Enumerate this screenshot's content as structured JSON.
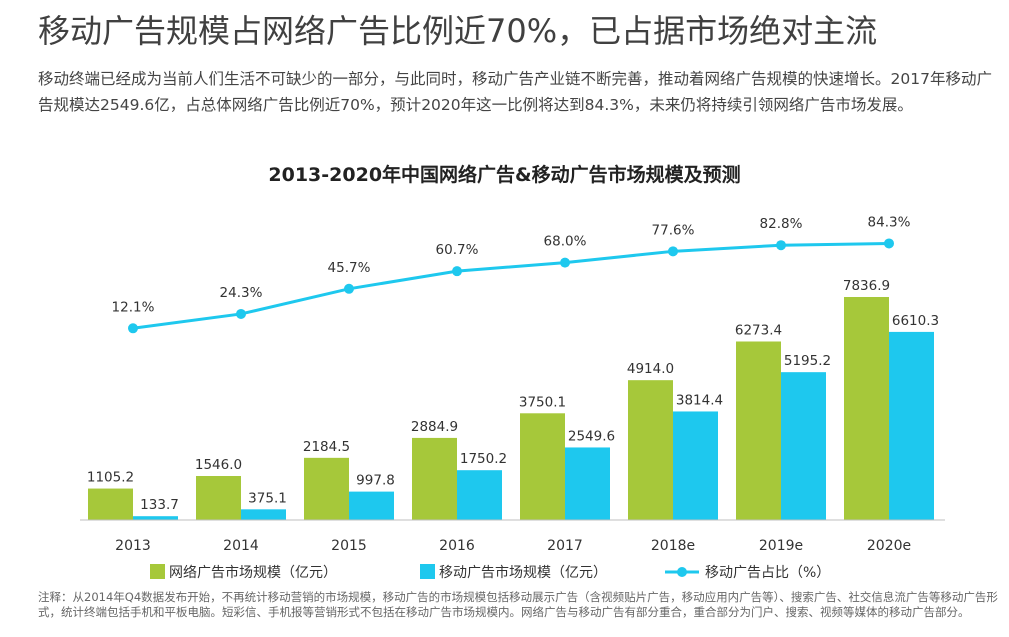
{
  "page": {
    "headline": "移动广告规模占网络广告比例近70%，已占据市场绝对主流",
    "intro": "移动终端已经成为当前人们生活不可缺少的一部分，与此同时，移动广告产业链不断完善，推动着网络广告规模的快速增长。2017年移动广告规模达2549.6亿，占总体网络广告比例近70%，预计2020年这一比例将达到84.3%，未来仍将持续引领网络广告市场发展。",
    "note": "注释：从2014年Q4数据发布开始，不再统计移动营销的市场规模，移动广告的市场规模包括移动展示广告（含视频贴片广告，移动应用内广告等）、搜索广告、社交信息流广告等移动广告形式，统计终端包括手机和平板电脑。短彩信、手机报等营销形式不包括在移动广告市场规模内。网络广告与移动广告有部分重合，重合部分为门户、搜索、视频等媒体的移动广告部分。"
  },
  "chart_data": {
    "type": "bar",
    "title": "2013-2020年中国网络广告&移动广告市场规模及预测",
    "categories": [
      "2013",
      "2014",
      "2015",
      "2016",
      "2017",
      "2018e",
      "2019e",
      "2020e"
    ],
    "series": [
      {
        "name": "网络广告市场规模（亿元）",
        "type": "bar",
        "color": "#a6c83a",
        "values": [
          1105.2,
          1546.0,
          2184.5,
          2884.9,
          3750.1,
          4914.0,
          6273.4,
          7836.9
        ],
        "labels": [
          "1105.2",
          "1546.0",
          "2184.5",
          "2884.9",
          "3750.1",
          "4914.0",
          "6273.4",
          "7836.9"
        ]
      },
      {
        "name": "移动广告市场规模（亿元）",
        "type": "bar",
        "color": "#1ec8ee",
        "values": [
          133.7,
          375.1,
          997.8,
          1750.2,
          2549.6,
          3814.4,
          5195.2,
          6610.3
        ],
        "labels": [
          "133.7",
          "375.1",
          "997.8",
          "1750.2",
          "2549.6",
          "3814.4",
          "5195.2",
          "6610.3"
        ]
      },
      {
        "name": "移动广告占比（%）",
        "type": "line",
        "color": "#1ec8ee",
        "values": [
          12.1,
          24.3,
          45.7,
          60.7,
          68.0,
          77.6,
          82.8,
          84.3
        ],
        "labels": [
          "12.1%",
          "24.3%",
          "45.7%",
          "60.7%",
          "68.0%",
          "77.6%",
          "82.8%",
          "84.3%"
        ]
      }
    ],
    "legend_position": "bottom",
    "grid": false
  }
}
